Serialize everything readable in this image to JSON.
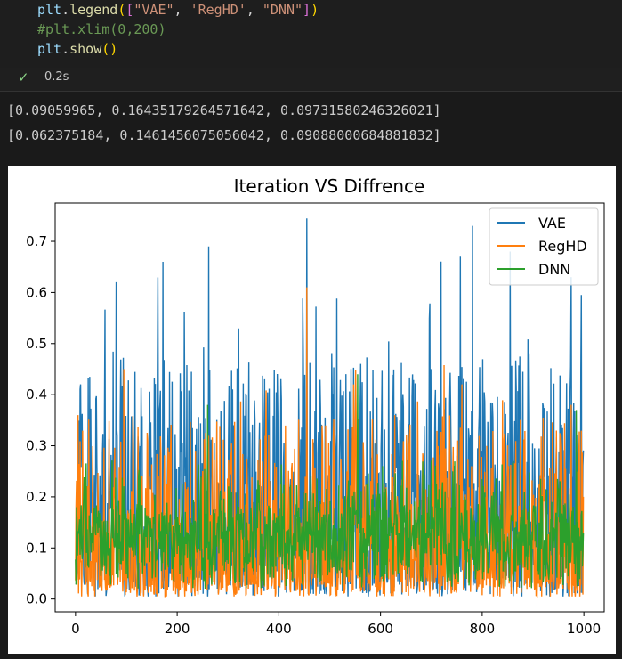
{
  "code": {
    "line1": {
      "fn": "plt.legend",
      "args": [
        "\"VAE\"",
        "'RegHD'",
        "\"DNN\""
      ]
    },
    "line2": "#plt.xlim(0,200)",
    "line3": {
      "fn": "plt.show"
    }
  },
  "status": {
    "icon": "check-icon",
    "time": "0.2s"
  },
  "output": {
    "line1": "[0.09059965, 0.16435179264571642, 0.09731580246326021]",
    "line2": "[0.062375184, 0.1461456075056042, 0.09088000684881832]"
  },
  "colors": {
    "vae": "#1f77b4",
    "reghd": "#ff7f0e",
    "dnn": "#2ca02c"
  },
  "chart_data": {
    "type": "line",
    "title": "Iteration VS Diffrence",
    "xlabel": "",
    "ylabel": "",
    "xlim": [
      -40,
      1040
    ],
    "ylim": [
      -0.025,
      0.775
    ],
    "xticks": [
      0,
      200,
      400,
      600,
      800,
      1000
    ],
    "yticks": [
      0.0,
      0.1,
      0.2,
      0.3,
      0.4,
      0.5,
      0.6,
      0.7
    ],
    "grid": false,
    "legend_position": "top-right",
    "n_points": 1000,
    "series": [
      {
        "name": "VAE",
        "mean": 0.09059965,
        "max_peaks": [
          [
            80,
            0.62
          ],
          [
            172,
            0.66
          ],
          [
            262,
            0.69
          ],
          [
            455,
            0.745
          ],
          [
            757,
            0.67
          ],
          [
            855,
            0.68
          ],
          [
            975,
            0.63
          ],
          [
            995,
            0.595
          ]
        ]
      },
      {
        "name": "RegHD",
        "mean": 0.062375184,
        "max_peaks": [
          [
            5,
            0.36
          ],
          [
            95,
            0.45
          ],
          [
            455,
            0.61
          ],
          [
            547,
            0.42
          ],
          [
            760,
            0.42
          ],
          [
            975,
            0.38
          ]
        ]
      },
      {
        "name": "DNN",
        "mean": 0.09088000684881832,
        "max_peaks": [
          [
            260,
            0.38
          ],
          [
            555,
            0.44
          ],
          [
            985,
            0.37
          ]
        ]
      }
    ]
  }
}
